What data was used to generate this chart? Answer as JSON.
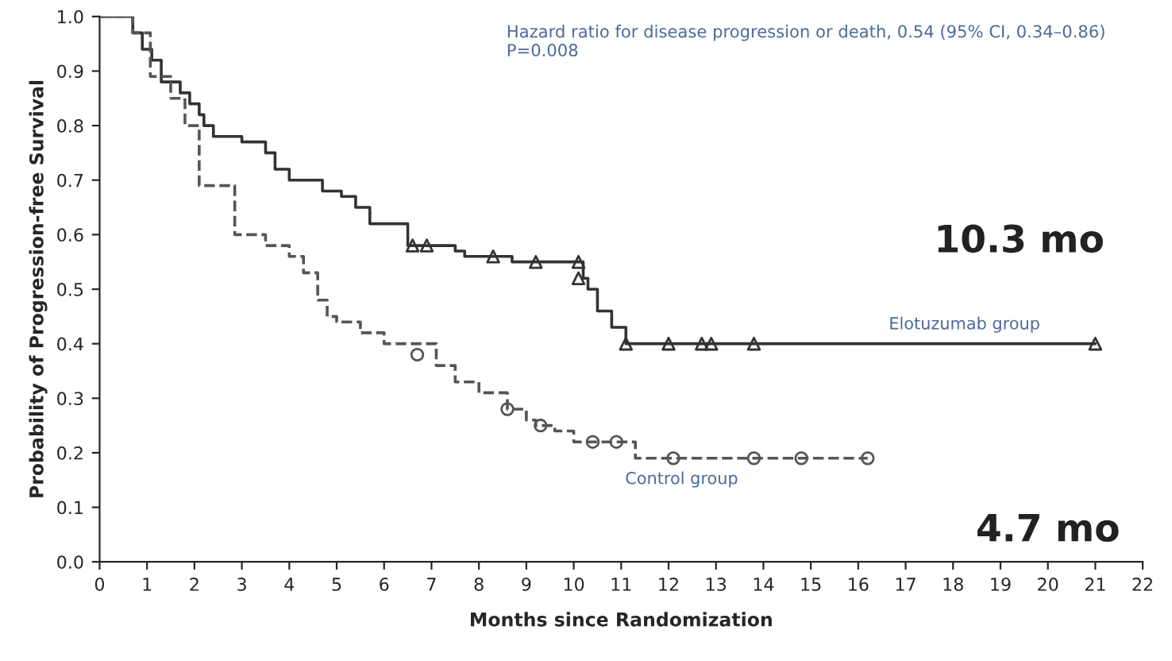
{
  "chart_data": {
    "type": "step",
    "xlabel": "Months since Randomization",
    "ylabel": "Probability of Progression-free Survival",
    "annotations": [
      "Hazard ratio for disease progression or death, 0.54 (95% CI, 0.34–0.86)\nP=0.008",
      "10.3 mo",
      "4.7 mo"
    ],
    "xlim": [
      0,
      22
    ],
    "ylim": [
      0,
      1.0
    ],
    "xticks": [
      0,
      1,
      2,
      3,
      4,
      5,
      6,
      7,
      8,
      9,
      10,
      11,
      12,
      13,
      14,
      15,
      16,
      17,
      18,
      19,
      20,
      21,
      22
    ],
    "yticks": [
      {
        "value": 0,
        "label": "0.0"
      },
      0.1,
      0.2,
      0.3,
      0.4,
      0.5,
      0.6,
      0.7,
      0.8,
      0.9,
      {
        "value": 1,
        "label": "1.0"
      }
    ],
    "grid": false,
    "legend": false,
    "series": [
      {
        "name": "Elotuzumab group",
        "color": "#333333",
        "line_style": "solid",
        "x": [
          0,
          0.7,
          0.9,
          1.1,
          1.3,
          1.7,
          1.9,
          2.1,
          2.2,
          2.4,
          3.0,
          3.5,
          3.7,
          4.0,
          4.7,
          5.1,
          5.4,
          5.7,
          6.5,
          7.5,
          7.7,
          8.7,
          10.2,
          10.3,
          10.5,
          10.8,
          11.1,
          21.0
        ],
        "values": [
          1.0,
          0.97,
          0.94,
          0.92,
          0.88,
          0.86,
          0.84,
          0.82,
          0.8,
          0.78,
          0.77,
          0.75,
          0.72,
          0.7,
          0.68,
          0.67,
          0.65,
          0.62,
          0.58,
          0.57,
          0.56,
          0.55,
          0.52,
          0.5,
          0.46,
          0.43,
          0.4,
          0.4
        ]
      },
      {
        "name": "Control group",
        "color": "#555555",
        "line_style": "dashed",
        "x": [
          0,
          0.7,
          1.07,
          1.5,
          1.8,
          2.1,
          2.85,
          3.5,
          4.0,
          4.3,
          4.6,
          4.8,
          5.0,
          5.5,
          6.0,
          7.1,
          7.5,
          8.0,
          8.6,
          9.0,
          9.2,
          9.6,
          10.0,
          11.3,
          16.2
        ],
        "values": [
          1.0,
          0.97,
          0.89,
          0.85,
          0.8,
          0.69,
          0.6,
          0.58,
          0.56,
          0.53,
          0.48,
          0.45,
          0.44,
          0.42,
          0.4,
          0.36,
          0.33,
          0.31,
          0.28,
          0.26,
          0.25,
          0.24,
          0.22,
          0.19,
          0.19
        ]
      },
      {
        "type": "scatter",
        "color": "#333333",
        "marker": "triangle",
        "x": [
          6.6,
          6.9,
          8.3,
          9.2,
          10.1,
          10.1,
          11.1,
          12.0,
          12.7,
          12.9,
          13.8,
          21.0
        ],
        "values": [
          0.58,
          0.58,
          0.56,
          0.55,
          0.55,
          0.52,
          0.4,
          0.4,
          0.4,
          0.4,
          0.4,
          0.4
        ]
      },
      {
        "type": "scatter",
        "color": "#555555",
        "marker": "circle",
        "x": [
          6.7,
          8.6,
          9.3,
          10.4,
          10.9,
          12.1,
          13.8,
          14.8,
          16.2
        ],
        "values": [
          0.38,
          0.28,
          0.25,
          0.22,
          0.22,
          0.19,
          0.19,
          0.19,
          0.19
        ]
      }
    ]
  }
}
